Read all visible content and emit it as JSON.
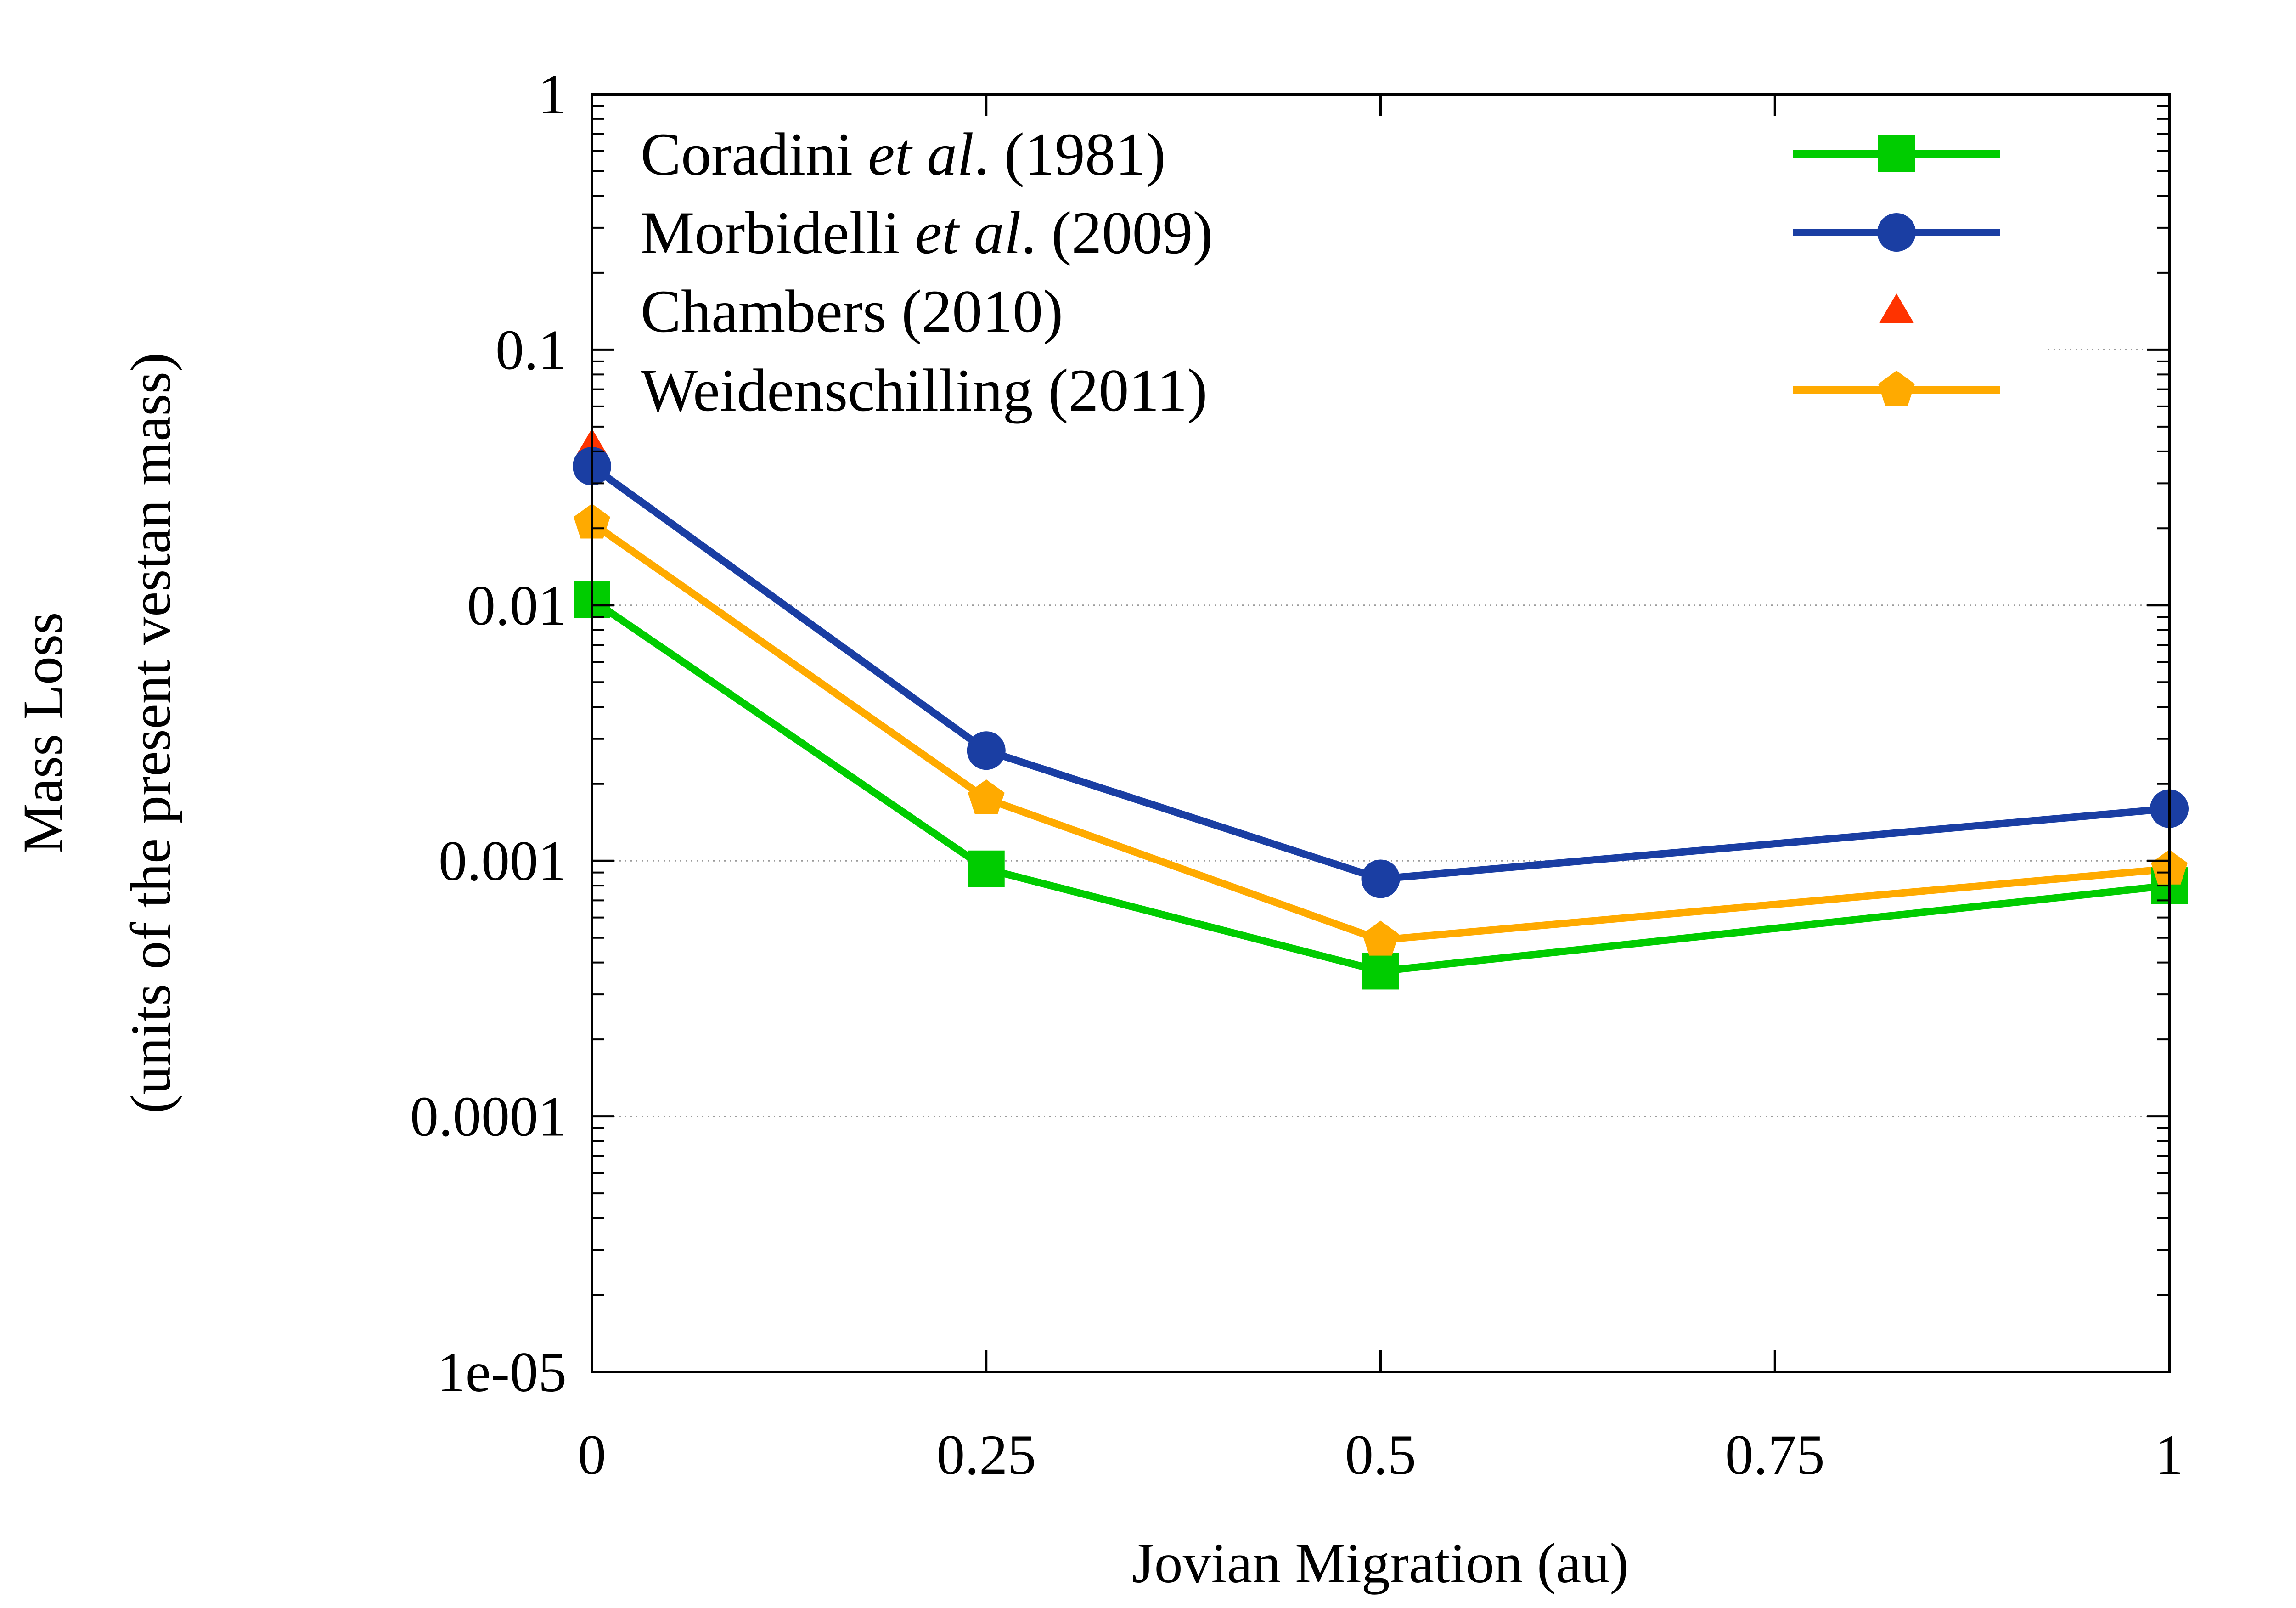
{
  "chart_data": {
    "type": "line",
    "title": "",
    "xlabel": "Jovian Migration (au)",
    "ylabel": [
      "Mass Loss",
      "(units of the present vestan mass)"
    ],
    "x": [
      0,
      0.25,
      0.5,
      0.75,
      1
    ],
    "xticks": [
      0,
      0.25,
      0.5,
      0.75,
      1
    ],
    "xtick_labels": [
      "0",
      "0.25",
      "0.5",
      "0.75",
      "1"
    ],
    "xlim": [
      0,
      1
    ],
    "ylim": [
      1e-05,
      1
    ],
    "yscale": "log",
    "yticks": [
      1e-05,
      0.0001,
      0.001,
      0.01,
      0.1,
      1
    ],
    "ytick_labels": [
      "1e-05",
      "0.0001",
      "0.001",
      "0.01",
      "0.1",
      "1"
    ],
    "grid": "horizontal-dotted",
    "legend_position": "top-right",
    "series": [
      {
        "name_parts": [
          "Coradini ",
          "et al",
          ". (1981)"
        ],
        "color": "#00cc00",
        "marker": "square",
        "line": true,
        "x": [
          0,
          0.25,
          0.5,
          1
        ],
        "values": [
          0.0105,
          0.00093,
          0.00037,
          0.0008
        ]
      },
      {
        "name_parts": [
          "Morbidelli ",
          "et al",
          ". (2009)"
        ],
        "color": "#1a3ea3",
        "marker": "circle",
        "line": true,
        "x": [
          0,
          0.25,
          0.5,
          1
        ],
        "values": [
          0.035,
          0.0027,
          0.00085,
          0.0016
        ]
      },
      {
        "name_parts": [
          "Chambers (2010)",
          "",
          ""
        ],
        "color": "#ff3300",
        "marker": "triangle",
        "line": false,
        "x": [
          0
        ],
        "values": [
          0.042
        ]
      },
      {
        "name_parts": [
          "Weidenschilling (2011)",
          "",
          ""
        ],
        "color": "#ffaa00",
        "marker": "pentagon",
        "line": true,
        "x": [
          0,
          0.25,
          0.5,
          1
        ],
        "values": [
          0.021,
          0.00175,
          0.00049,
          0.00093
        ]
      }
    ]
  }
}
